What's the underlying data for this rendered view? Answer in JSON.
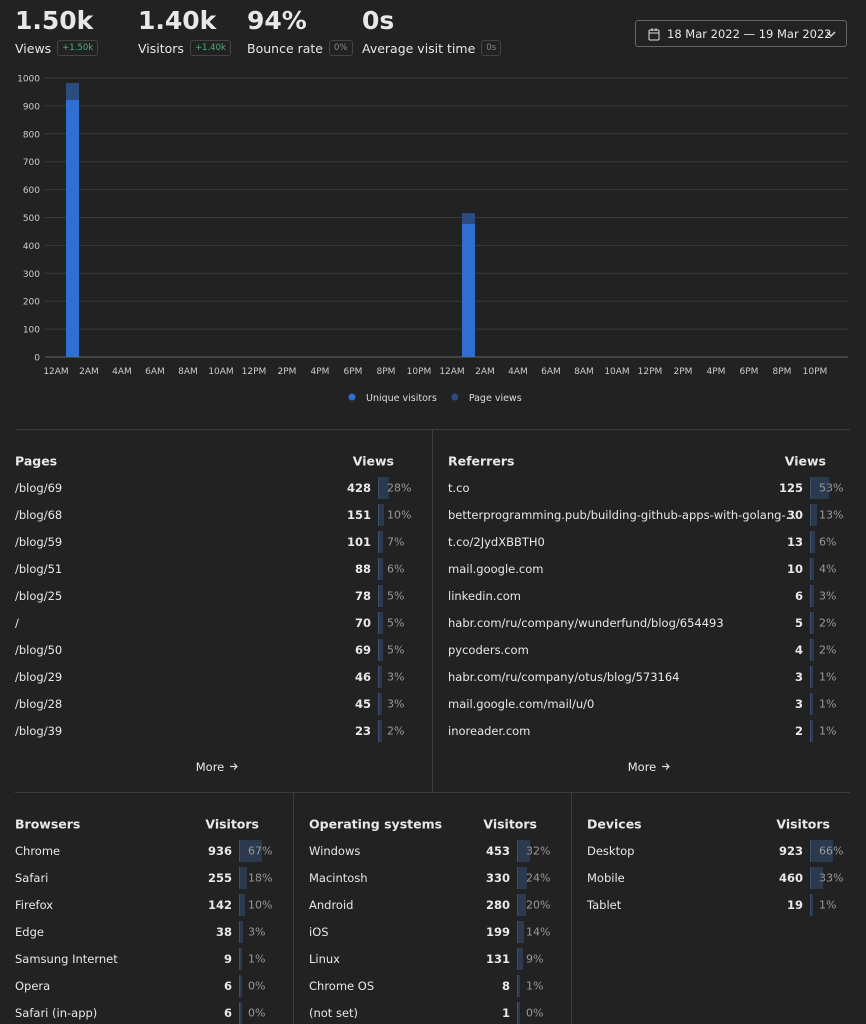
{
  "stats": [
    {
      "value": "1.50k",
      "label": "Views",
      "change": "+1.50k"
    },
    {
      "value": "1.40k",
      "label": "Visitors",
      "change": "+1.40k"
    },
    {
      "value": "94%",
      "label": "Bounce rate",
      "change": "0%"
    },
    {
      "value": "0s",
      "label": "Average visit time",
      "change": "0s"
    }
  ],
  "date_range": "18 Mar 2022 — 19 Mar 2022",
  "chart_data": {
    "type": "bar",
    "categories": [
      "12AM",
      null,
      "2AM",
      null,
      "4AM",
      null,
      "6AM",
      null,
      "8AM",
      null,
      "10AM",
      null,
      "12PM",
      null,
      "2PM",
      null,
      "4PM",
      null,
      "6PM",
      null,
      "8PM",
      null,
      "10PM",
      null,
      "12AM",
      null,
      "2AM",
      null,
      "4AM",
      null,
      "6AM",
      null,
      "8AM",
      null,
      "10AM",
      null,
      "12PM",
      null,
      "2PM",
      null,
      "4PM",
      null,
      "6PM",
      null,
      "8PM",
      null,
      "10PM",
      null
    ],
    "series": [
      {
        "name": "Unique visitors",
        "color": "#2f6fd0",
        "values": [
          0,
          921,
          0,
          0,
          0,
          0,
          0,
          0,
          0,
          0,
          0,
          0,
          0,
          0,
          0,
          0,
          0,
          0,
          0,
          0,
          0,
          0,
          0,
          0,
          0,
          477,
          0,
          0,
          0,
          0,
          0,
          0,
          0,
          0,
          0,
          0,
          0,
          0,
          0,
          0,
          0,
          0,
          0,
          0,
          0,
          0,
          0,
          0
        ]
      },
      {
        "name": "Page views",
        "color": "#2b4c7e",
        "values": [
          0,
          982,
          0,
          0,
          0,
          0,
          0,
          0,
          0,
          0,
          0,
          0,
          0,
          0,
          0,
          0,
          0,
          0,
          0,
          0,
          0,
          0,
          0,
          0,
          0,
          516,
          0,
          0,
          0,
          0,
          0,
          0,
          0,
          0,
          0,
          0,
          0,
          0,
          0,
          0,
          0,
          0,
          0,
          0,
          0,
          0,
          0,
          0
        ]
      }
    ],
    "ylim": [
      0,
      1000
    ],
    "yticks": [
      0,
      100,
      200,
      300,
      400,
      500,
      600,
      700,
      800,
      900,
      1000
    ],
    "grid": true,
    "overlap": true
  },
  "panels": [
    {
      "title": "Pages",
      "column": "Views",
      "more": "More",
      "rows": [
        {
          "label": "/blog/69",
          "count": 428,
          "pct": "28%"
        },
        {
          "label": "/blog/68",
          "count": 151,
          "pct": "10%"
        },
        {
          "label": "/blog/59",
          "count": 101,
          "pct": "7%"
        },
        {
          "label": "/blog/51",
          "count": 88,
          "pct": "6%"
        },
        {
          "label": "/blog/25",
          "count": 78,
          "pct": "5%"
        },
        {
          "label": "/",
          "count": 70,
          "pct": "5%"
        },
        {
          "label": "/blog/50",
          "count": 69,
          "pct": "5%"
        },
        {
          "label": "/blog/29",
          "count": 46,
          "pct": "3%"
        },
        {
          "label": "/blog/28",
          "count": 45,
          "pct": "3%"
        },
        {
          "label": "/blog/39",
          "count": 23,
          "pct": "2%"
        }
      ]
    },
    {
      "title": "Referrers",
      "column": "Views",
      "more": "More",
      "rows": [
        {
          "label": "t.co",
          "count": 125,
          "pct": "53%"
        },
        {
          "label": "betterprogramming.pub/building-github-apps-with-golang-...",
          "count": 30,
          "pct": "13%"
        },
        {
          "label": "t.co/2JydXBBTH0",
          "count": 13,
          "pct": "6%"
        },
        {
          "label": "mail.google.com",
          "count": 10,
          "pct": "4%"
        },
        {
          "label": "linkedin.com",
          "count": 6,
          "pct": "3%"
        },
        {
          "label": "habr.com/ru/company/wunderfund/blog/654493",
          "count": 5,
          "pct": "2%"
        },
        {
          "label": "pycoders.com",
          "count": 4,
          "pct": "2%"
        },
        {
          "label": "habr.com/ru/company/otus/blog/573164",
          "count": 3,
          "pct": "1%"
        },
        {
          "label": "mail.google.com/mail/u/0",
          "count": 3,
          "pct": "1%"
        },
        {
          "label": "inoreader.com",
          "count": 2,
          "pct": "1%"
        }
      ]
    },
    {
      "title": "Browsers",
      "column": "Visitors",
      "rows": [
        {
          "label": "Chrome",
          "count": 936,
          "pct": "67%"
        },
        {
          "label": "Safari",
          "count": 255,
          "pct": "18%"
        },
        {
          "label": "Firefox",
          "count": 142,
          "pct": "10%"
        },
        {
          "label": "Edge",
          "count": 38,
          "pct": "3%"
        },
        {
          "label": "Samsung Internet",
          "count": 9,
          "pct": "1%"
        },
        {
          "label": "Opera",
          "count": 6,
          "pct": "0%"
        },
        {
          "label": "Safari (in-app)",
          "count": 6,
          "pct": "0%"
        }
      ]
    },
    {
      "title": "Operating systems",
      "column": "Visitors",
      "rows": [
        {
          "label": "Windows",
          "count": 453,
          "pct": "32%"
        },
        {
          "label": "Macintosh",
          "count": 330,
          "pct": "24%"
        },
        {
          "label": "Android",
          "count": 280,
          "pct": "20%"
        },
        {
          "label": "iOS",
          "count": 199,
          "pct": "14%"
        },
        {
          "label": "Linux",
          "count": 131,
          "pct": "9%"
        },
        {
          "label": "Chrome OS",
          "count": 8,
          "pct": "1%"
        },
        {
          "label": "(not set)",
          "count": 1,
          "pct": "0%"
        }
      ]
    },
    {
      "title": "Devices",
      "column": "Visitors",
      "rows": [
        {
          "label": "Desktop",
          "count": 923,
          "pct": "66%"
        },
        {
          "label": "Mobile",
          "count": 460,
          "pct": "33%"
        },
        {
          "label": "Tablet",
          "count": 19,
          "pct": "1%"
        }
      ]
    }
  ]
}
